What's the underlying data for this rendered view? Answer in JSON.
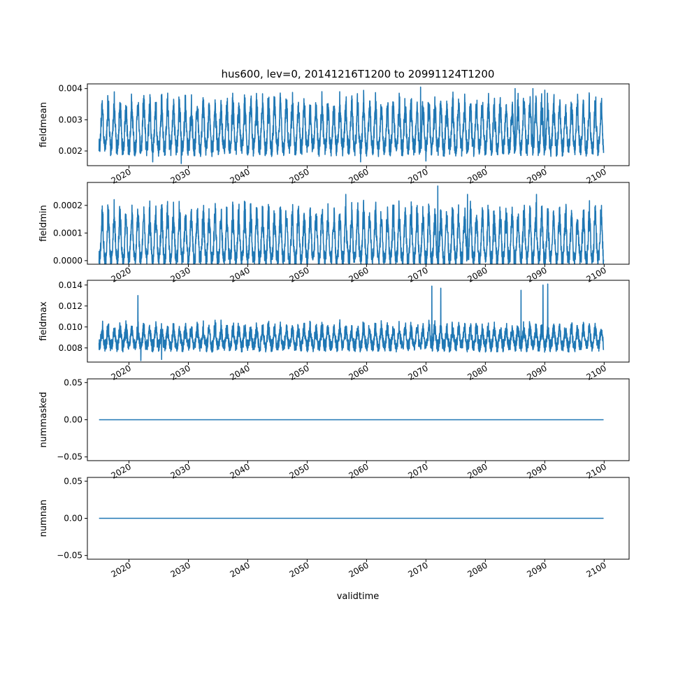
{
  "figure": {
    "title": "hus600, lev=0, 20141216T1200 to 20991124T1200",
    "xlabel": "validtime"
  },
  "colors": {
    "series": "#1f77b4",
    "axes": "#000000"
  },
  "chart_data": [
    {
      "type": "line",
      "ylabel": "fieldmean",
      "x_range": [
        "2014-12-16",
        "2099-11-24"
      ],
      "xlim": [
        2013.0,
        2104.2
      ],
      "ylim": [
        0.00153,
        0.00415
      ],
      "yticks": [
        0.002,
        0.003,
        0.004
      ],
      "ytick_labels": [
        "0.002",
        "0.003",
        "0.004"
      ],
      "xticks": [
        2020,
        2030,
        2040,
        2050,
        2060,
        2070,
        2080,
        2090,
        2100
      ],
      "xtick_labels": [
        "2020",
        "2030",
        "2040",
        "2050",
        "2060",
        "2070",
        "2080",
        "2090",
        "2100"
      ],
      "seasonal": {
        "low": 0.0021,
        "high": 0.0034,
        "noise": 0.00028
      },
      "peaks": [
        {
          "x": 2069.1,
          "y": 0.00405
        },
        {
          "x": 2085.0,
          "y": 0.004
        },
        {
          "x": 2088.0,
          "y": 0.004
        },
        {
          "x": 2090.0,
          "y": 0.00395
        }
      ],
      "troughs": [
        {
          "x": 2024.0,
          "y": 0.00165
        },
        {
          "x": 2028.8,
          "y": 0.0016
        },
        {
          "x": 2059.0,
          "y": 0.00165
        },
        {
          "x": 2070.0,
          "y": 0.00168
        }
      ]
    },
    {
      "type": "line",
      "ylabel": "fieldmin",
      "x_range": [
        "2014-12-16",
        "2099-11-24"
      ],
      "xlim": [
        2013.0,
        2104.2
      ],
      "ylim": [
        -1.3e-05,
        0.000283
      ],
      "yticks": [
        0.0,
        0.0001,
        0.0002
      ],
      "ytick_labels": [
        "0.0000",
        "0.0001",
        "0.0002"
      ],
      "xticks": [
        2020,
        2030,
        2040,
        2050,
        2060,
        2070,
        2080,
        2090,
        2100
      ],
      "xtick_labels": [
        "2020",
        "2030",
        "2040",
        "2050",
        "2060",
        "2070",
        "2080",
        "2090",
        "2100"
      ],
      "seasonal": {
        "low": 5e-06,
        "high": 0.00016,
        "noise": 3e-05
      },
      "peaks": [
        {
          "x": 2072.0,
          "y": 0.00027
        },
        {
          "x": 2056.5,
          "y": 0.00024
        },
        {
          "x": 2077.0,
          "y": 0.00024
        },
        {
          "x": 2088.6,
          "y": 0.00024
        }
      ],
      "troughs": []
    },
    {
      "type": "line",
      "ylabel": "fieldmax",
      "x_range": [
        "2014-12-16",
        "2099-11-24"
      ],
      "xlim": [
        2013.0,
        2104.2
      ],
      "ylim": [
        0.00665,
        0.01445
      ],
      "yticks": [
        0.008,
        0.01,
        0.012,
        0.014
      ],
      "ytick_labels": [
        "0.008",
        "0.010",
        "0.012",
        "0.014"
      ],
      "xticks": [
        2020,
        2030,
        2040,
        2050,
        2060,
        2070,
        2080,
        2090,
        2100
      ],
      "xtick_labels": [
        "2020",
        "2030",
        "2040",
        "2050",
        "2060",
        "2070",
        "2080",
        "2090",
        "2100"
      ],
      "seasonal": {
        "low": 0.0082,
        "high": 0.0098,
        "noise": 0.0006
      },
      "peaks": [
        {
          "x": 2021.5,
          "y": 0.013
        },
        {
          "x": 2071.0,
          "y": 0.0139
        },
        {
          "x": 2072.5,
          "y": 0.0137
        },
        {
          "x": 2089.7,
          "y": 0.014
        },
        {
          "x": 2090.5,
          "y": 0.0141
        },
        {
          "x": 2086.0,
          "y": 0.0135
        }
      ],
      "troughs": [
        {
          "x": 2022.0,
          "y": 0.0068
        },
        {
          "x": 2025.5,
          "y": 0.0069
        }
      ]
    },
    {
      "type": "line",
      "ylabel": "nummasked",
      "x_range": [
        "2014-12-16",
        "2099-11-24"
      ],
      "xlim": [
        2013.0,
        2104.2
      ],
      "ylim": [
        -0.055,
        0.055
      ],
      "yticks": [
        -0.05,
        0.0,
        0.05
      ],
      "ytick_labels": [
        "−0.05",
        "0.00",
        "0.05"
      ],
      "xticks": [
        2020,
        2030,
        2040,
        2050,
        2060,
        2070,
        2080,
        2090,
        2100
      ],
      "xtick_labels": [
        "2020",
        "2030",
        "2040",
        "2050",
        "2060",
        "2070",
        "2080",
        "2090",
        "2100"
      ],
      "constant": 0
    },
    {
      "type": "line",
      "ylabel": "numnan",
      "x_range": [
        "2014-12-16",
        "2099-11-24"
      ],
      "xlim": [
        2013.0,
        2104.2
      ],
      "ylim": [
        -0.055,
        0.055
      ],
      "yticks": [
        -0.05,
        0.0,
        0.05
      ],
      "ytick_labels": [
        "−0.05",
        "0.00",
        "0.05"
      ],
      "xticks": [
        2020,
        2030,
        2040,
        2050,
        2060,
        2070,
        2080,
        2090,
        2100
      ],
      "xtick_labels": [
        "2020",
        "2030",
        "2040",
        "2050",
        "2060",
        "2070",
        "2080",
        "2090",
        "2100"
      ],
      "constant": 0
    }
  ]
}
